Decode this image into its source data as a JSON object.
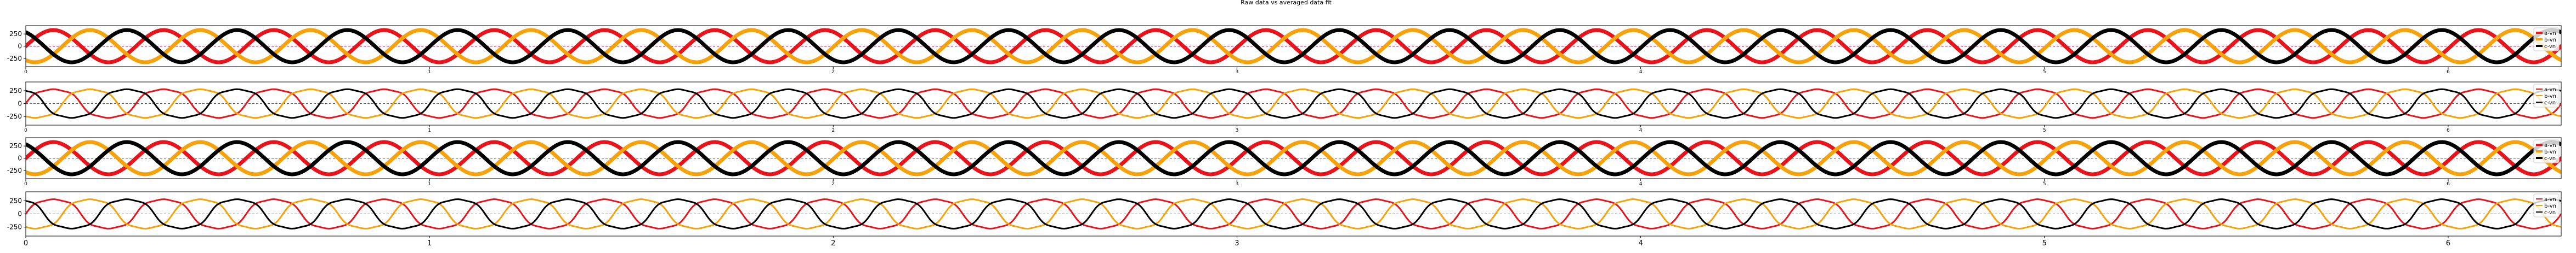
{
  "figure": {
    "title": "Raw data vs averaged data fit"
  },
  "colors": {
    "a": "#e8141b",
    "b": "#f5a20c",
    "c": "#000000",
    "reference_line": "#c0285a",
    "axes": "#000000",
    "legend_border": "#cccccc"
  },
  "chart_data": [
    {
      "type": "line",
      "panel": "raw",
      "xlim": [
        0,
        6.28
      ],
      "ylim": [
        -420,
        420
      ],
      "yticks": [
        -250,
        0,
        250
      ],
      "xticks": [
        0,
        1,
        2,
        3,
        4,
        5,
        6
      ],
      "reference_lines": [
        0
      ],
      "legend": {
        "location": "right",
        "entries": [
          "a-vn",
          "b-vn",
          "c-vn"
        ]
      },
      "series": [
        {
          "name": "a-vn",
          "key": "a",
          "amplitude": 330,
          "cycles": 23,
          "phase_deg": 0,
          "waveform": "sine",
          "style": "raw"
        },
        {
          "name": "b-vn",
          "key": "b",
          "amplitude": 330,
          "cycles": 23,
          "phase_deg": -120,
          "waveform": "sine",
          "style": "raw"
        },
        {
          "name": "c-vn",
          "key": "c",
          "amplitude": 330,
          "cycles": 23,
          "phase_deg": 120,
          "waveform": "sine",
          "style": "raw"
        }
      ]
    },
    {
      "type": "line",
      "panel": "fit",
      "xlim": [
        0,
        6.28
      ],
      "ylim": [
        -420,
        420
      ],
      "yticks": [
        -250,
        0,
        250
      ],
      "xticks": [
        0,
        1,
        2,
        3,
        4,
        5,
        6
      ],
      "reference_lines": [
        0
      ],
      "legend": {
        "location": "right",
        "entries": [
          "a-vn",
          "b-vn",
          "c-vn"
        ]
      },
      "series": [
        {
          "name": "a-vn",
          "key": "a",
          "amplitude": 300,
          "cycles": 23,
          "phase_deg": 0,
          "waveform": "fitted",
          "style": "fit"
        },
        {
          "name": "b-vn",
          "key": "b",
          "amplitude": 300,
          "cycles": 23,
          "phase_deg": -120,
          "waveform": "fitted",
          "style": "fit"
        },
        {
          "name": "c-vn",
          "key": "c",
          "amplitude": 300,
          "cycles": 23,
          "phase_deg": 120,
          "waveform": "fitted",
          "style": "fit"
        }
      ]
    },
    {
      "type": "line",
      "panel": "raw",
      "xlim": [
        0,
        6.28
      ],
      "ylim": [
        -420,
        420
      ],
      "yticks": [
        -250,
        0,
        250
      ],
      "xticks": [
        0,
        1,
        2,
        3,
        4,
        5,
        6
      ],
      "reference_lines": [
        0
      ],
      "legend": {
        "location": "right",
        "entries": [
          "a-vn",
          "b-vn",
          "c-vn"
        ]
      },
      "series": [
        {
          "name": "a-vn",
          "key": "a",
          "amplitude": 330,
          "cycles": 23,
          "phase_deg": 0,
          "waveform": "sine",
          "style": "raw"
        },
        {
          "name": "b-vn",
          "key": "b",
          "amplitude": 330,
          "cycles": 23,
          "phase_deg": -120,
          "waveform": "sine",
          "style": "raw"
        },
        {
          "name": "c-vn",
          "key": "c",
          "amplitude": 330,
          "cycles": 23,
          "phase_deg": 120,
          "waveform": "sine",
          "style": "raw"
        }
      ]
    },
    {
      "type": "line",
      "panel": "fit",
      "xlim": [
        0,
        6.28
      ],
      "ylim": [
        -420,
        420
      ],
      "yticks": [
        -250,
        0,
        250
      ],
      "xticks": [
        0,
        1,
        2,
        3,
        4,
        5,
        6
      ],
      "reference_lines": [
        0
      ],
      "legend": {
        "location": "right",
        "entries": [
          "a-vn",
          "b-vn",
          "c-vn"
        ]
      },
      "series": [
        {
          "name": "a-vn",
          "key": "a",
          "amplitude": 300,
          "cycles": 23,
          "phase_deg": 0,
          "waveform": "fitted",
          "style": "fit"
        },
        {
          "name": "b-vn",
          "key": "b",
          "amplitude": 300,
          "cycles": 23,
          "phase_deg": -120,
          "waveform": "fitted",
          "style": "fit"
        },
        {
          "name": "c-vn",
          "key": "c",
          "amplitude": 300,
          "cycles": 23,
          "phase_deg": 120,
          "waveform": "fitted",
          "style": "fit"
        }
      ]
    }
  ]
}
